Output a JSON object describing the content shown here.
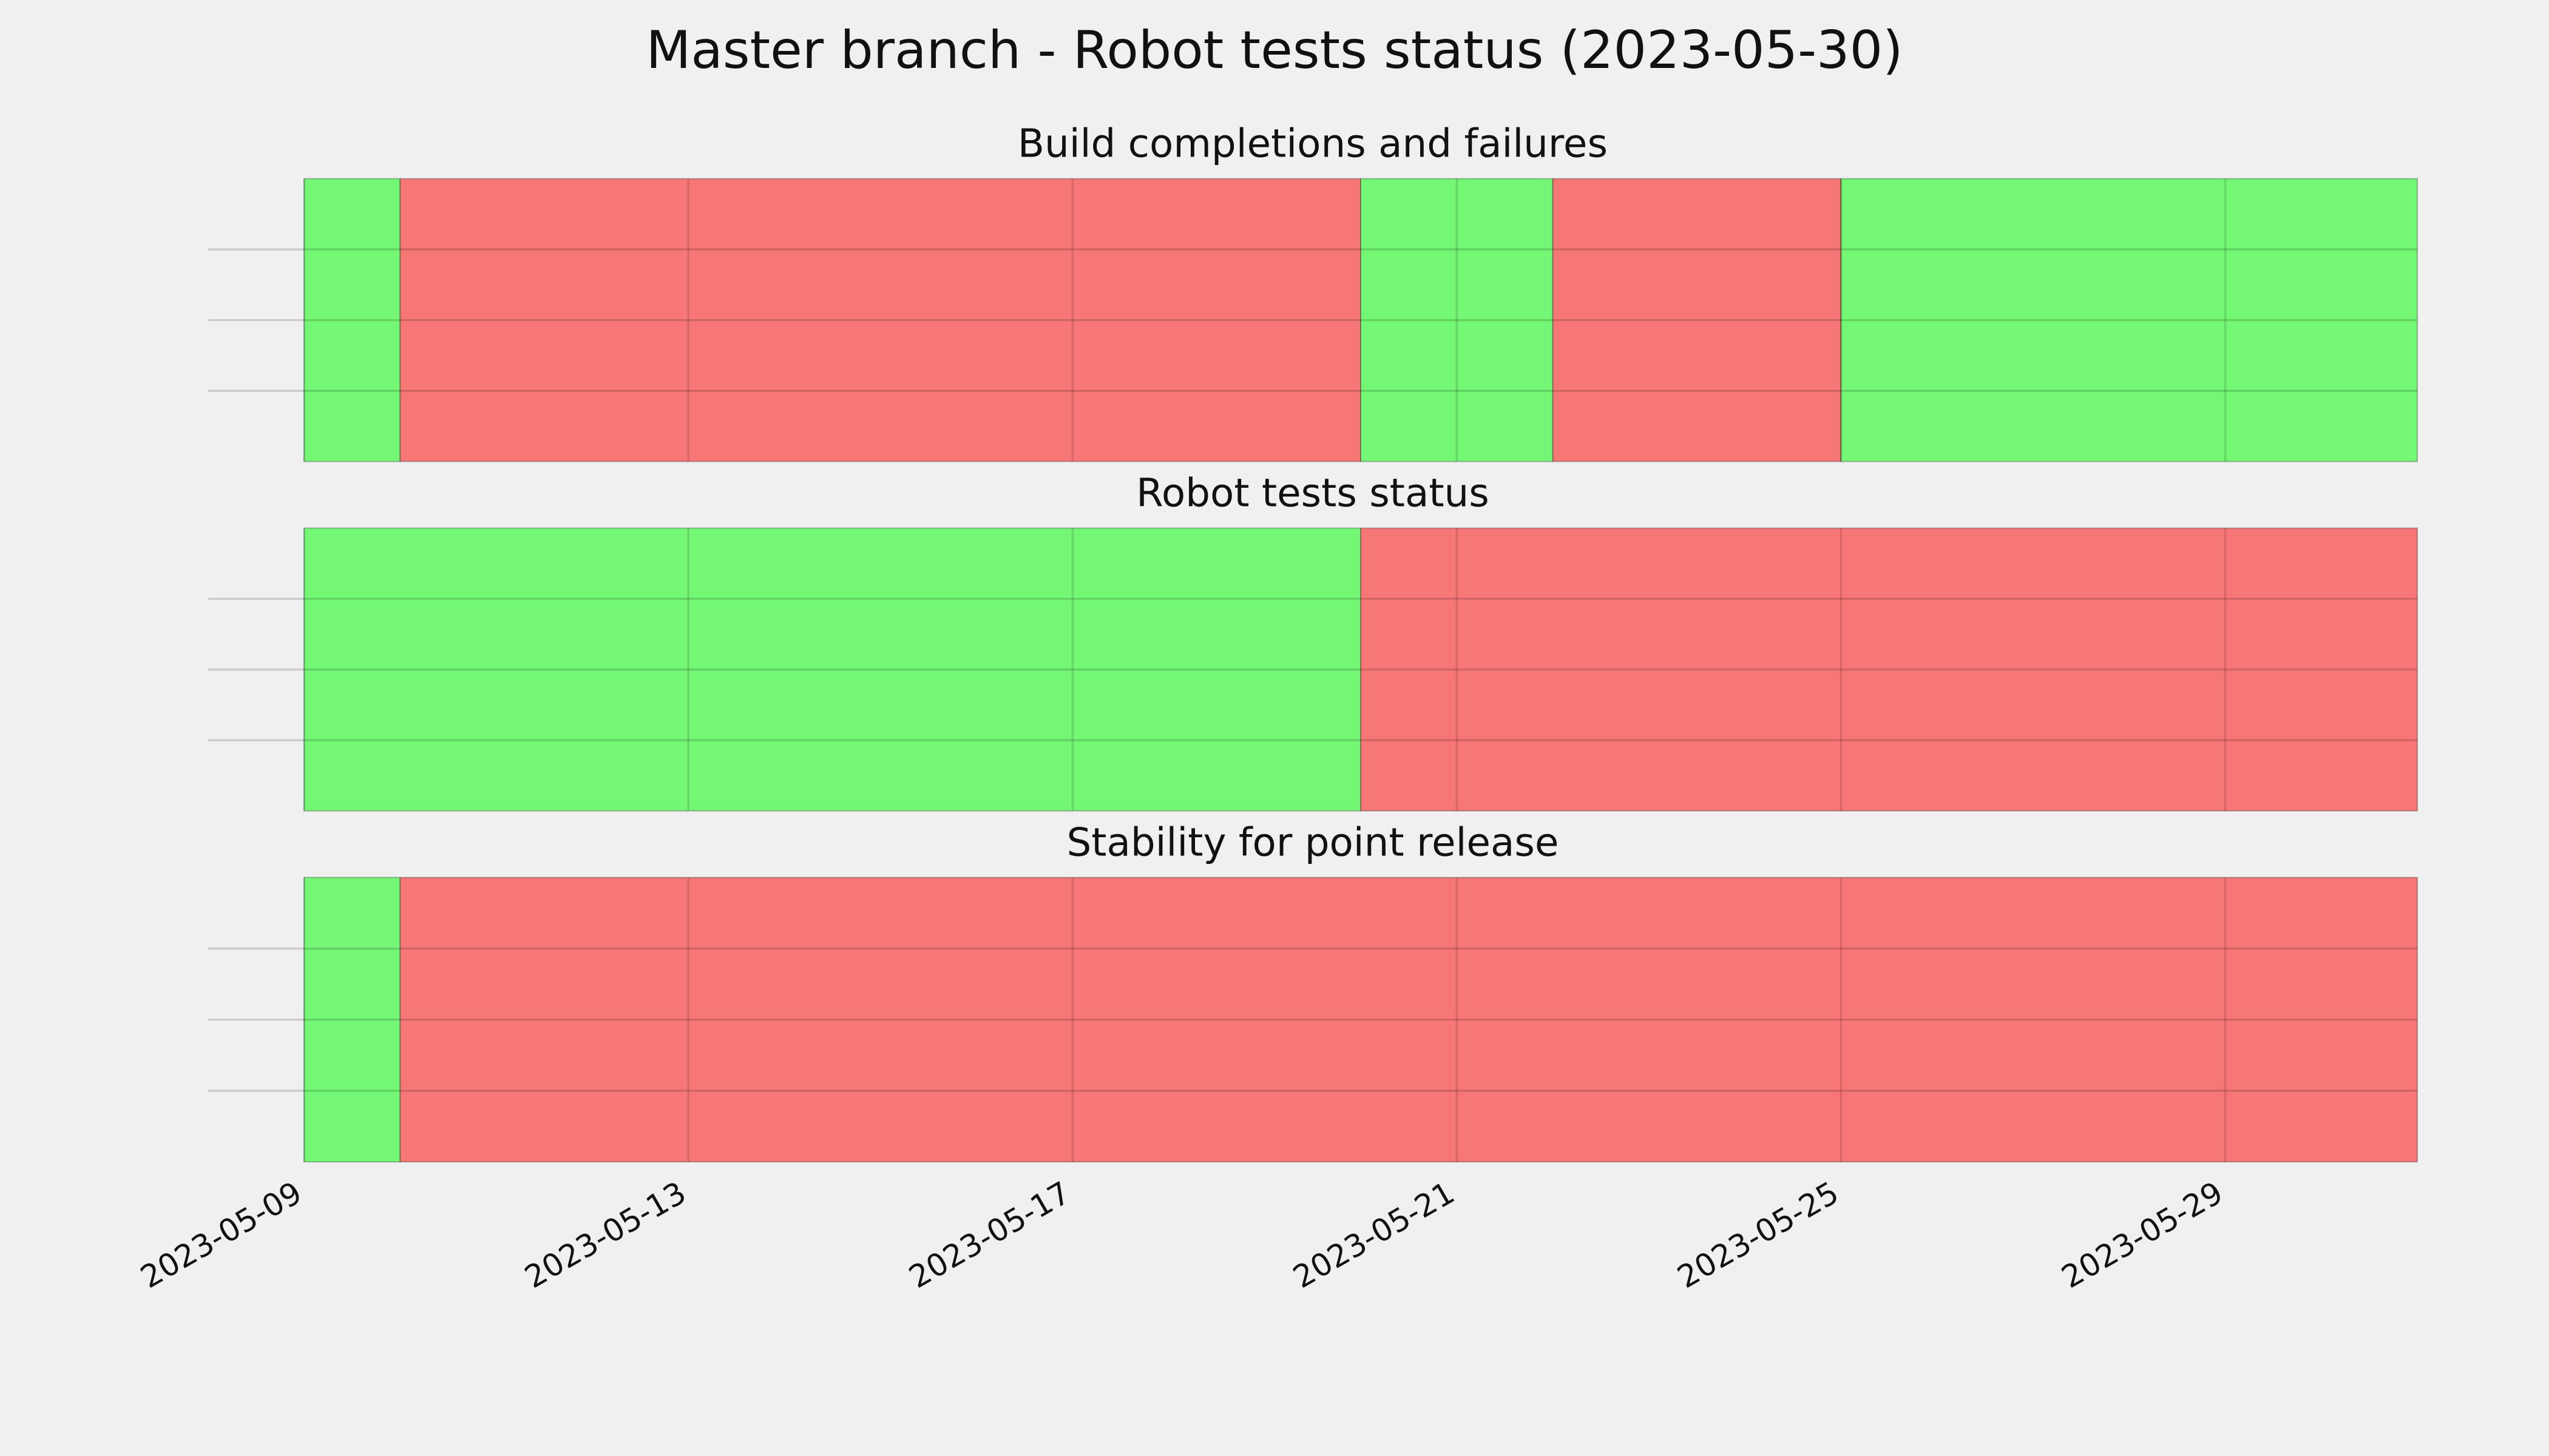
{
  "title": "Master branch - Robot tests status (2023-05-30)",
  "x_axis": {
    "xlim": [
      "2023-05-08",
      "2023-05-31"
    ],
    "xticks": [
      "2023-05-09",
      "2023-05-13",
      "2023-05-17",
      "2023-05-21",
      "2023-05-25",
      "2023-05-29"
    ]
  },
  "chart_data": [
    {
      "type": "timeline",
      "title": "Build completions and failures",
      "spans": [
        {
          "start": "2023-05-09",
          "end": "2023-05-10",
          "color": "#74f774"
        },
        {
          "start": "2023-05-10",
          "end": "2023-05-20",
          "color": "#f77676"
        },
        {
          "start": "2023-05-20",
          "end": "2023-05-22",
          "color": "#74f774"
        },
        {
          "start": "2023-05-22",
          "end": "2023-05-25",
          "color": "#f77676"
        },
        {
          "start": "2023-05-25",
          "end": "2023-05-31",
          "color": "#74f774"
        }
      ]
    },
    {
      "type": "timeline",
      "title": "Robot tests status",
      "spans": [
        {
          "start": "2023-05-09",
          "end": "2023-05-20",
          "color": "#74f774"
        },
        {
          "start": "2023-05-20",
          "end": "2023-05-31",
          "color": "#f77676"
        }
      ]
    },
    {
      "type": "timeline",
      "title": "Stability for point release",
      "spans": [
        {
          "start": "2023-05-09",
          "end": "2023-05-10",
          "color": "#74f774"
        },
        {
          "start": "2023-05-10",
          "end": "2023-05-31",
          "color": "#f77676"
        }
      ]
    }
  ]
}
